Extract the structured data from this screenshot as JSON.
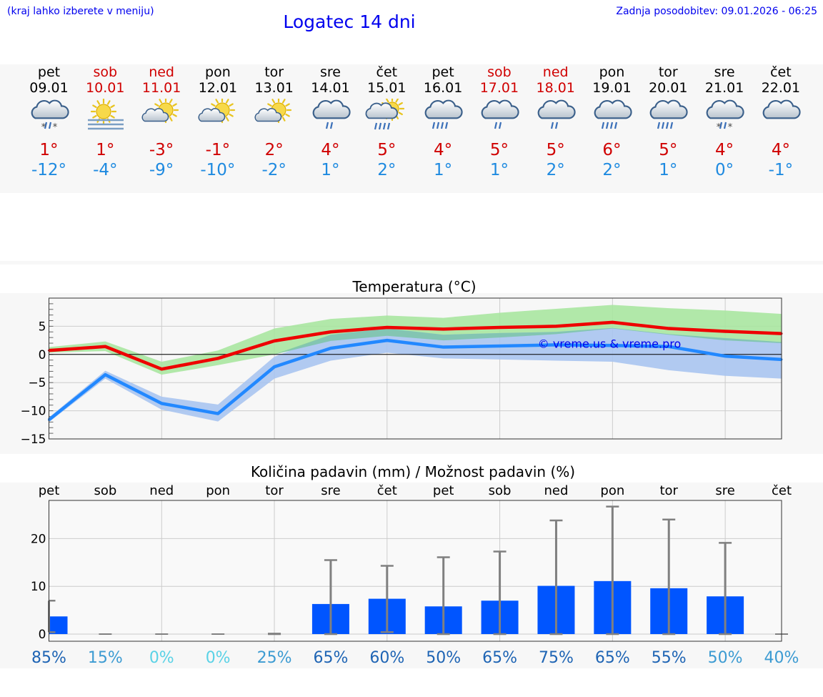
{
  "header": {
    "hint": "(kraj lahko izberete v meniju)",
    "title": "Logatec 14 dni",
    "updated": "Zadnja posodobitev: 09.01.2026 - 06:25"
  },
  "days": [
    {
      "name": "pet",
      "date": "09.01",
      "weekend": false,
      "icon": "cloud-snow-rain-icon",
      "tmax": "1°",
      "tmin": "-12°"
    },
    {
      "name": "sob",
      "date": "10.01",
      "weekend": true,
      "icon": "sun-fog-icon",
      "tmax": "1°",
      "tmin": "-4°"
    },
    {
      "name": "ned",
      "date": "11.01",
      "weekend": true,
      "icon": "partly-cloudy-icon",
      "tmax": "-3°",
      "tmin": "-9°"
    },
    {
      "name": "pon",
      "date": "12.01",
      "weekend": false,
      "icon": "partly-cloudy-icon",
      "tmax": "-1°",
      "tmin": "-10°"
    },
    {
      "name": "tor",
      "date": "13.01",
      "weekend": false,
      "icon": "partly-cloudy-icon",
      "tmax": "2°",
      "tmin": "-2°"
    },
    {
      "name": "sre",
      "date": "14.01",
      "weekend": false,
      "icon": "cloud-rain-icon",
      "tmax": "4°",
      "tmin": "1°"
    },
    {
      "name": "čet",
      "date": "15.01",
      "weekend": false,
      "icon": "sun-cloud-rain-icon",
      "tmax": "5°",
      "tmin": "2°"
    },
    {
      "name": "pet",
      "date": "16.01",
      "weekend": false,
      "icon": "cloud-heavy-rain-icon",
      "tmax": "4°",
      "tmin": "1°"
    },
    {
      "name": "sob",
      "date": "17.01",
      "weekend": true,
      "icon": "cloud-rain-icon",
      "tmax": "5°",
      "tmin": "1°"
    },
    {
      "name": "ned",
      "date": "18.01",
      "weekend": true,
      "icon": "cloud-rain-icon",
      "tmax": "5°",
      "tmin": "2°"
    },
    {
      "name": "pon",
      "date": "19.01",
      "weekend": false,
      "icon": "cloud-heavy-rain-icon",
      "tmax": "6°",
      "tmin": "2°"
    },
    {
      "name": "tor",
      "date": "20.01",
      "weekend": false,
      "icon": "cloud-heavy-rain-icon",
      "tmax": "5°",
      "tmin": "1°"
    },
    {
      "name": "sre",
      "date": "21.01",
      "weekend": false,
      "icon": "cloud-snow-rain-icon",
      "tmax": "4°",
      "tmin": "0°"
    },
    {
      "name": "čet",
      "date": "22.01",
      "weekend": false,
      "icon": "cloudy-icon",
      "tmax": "4°",
      "tmin": "-1°"
    }
  ],
  "colors": {
    "weekend": "#d00000",
    "tmin": "#1e8ae0",
    "maxLine": "#ee0000",
    "minLine": "#2288ff",
    "maxBand": "#a8e6a0",
    "minBand": "#a8c4f0",
    "overlap": "#7cc4a8",
    "bar": "#0055ff",
    "whisker": "#808080",
    "title": "#0000ee"
  },
  "chart_data": [
    {
      "type": "line",
      "title": "Temperatura (°C)",
      "ylim": [
        -15,
        10
      ],
      "yticks": [
        "5",
        "0",
        "−5",
        "−10",
        "−15"
      ],
      "yticks_values": [
        5,
        0,
        -5,
        -10,
        -15
      ],
      "x": [
        0,
        1,
        2,
        3,
        4,
        5,
        6,
        7,
        8,
        9,
        10,
        11,
        12,
        13
      ],
      "watermark": "© vreme.us & vreme.pro",
      "series": [
        {
          "name": "max",
          "values": [
            0.7,
            1.4,
            -2.6,
            -0.7,
            2.4,
            4.0,
            4.8,
            4.5,
            4.8,
            5.0,
            5.7,
            4.6,
            4.1,
            3.7
          ],
          "lower": [
            0.3,
            0.6,
            -3.6,
            -1.9,
            0.0,
            2.4,
            3.3,
            2.5,
            3.0,
            3.6,
            4.6,
            3.5,
            2.5,
            2.0
          ],
          "upper": [
            1.3,
            2.3,
            -1.3,
            0.7,
            4.6,
            6.3,
            6.9,
            6.5,
            7.4,
            8.1,
            8.8,
            8.2,
            7.8,
            7.2
          ]
        },
        {
          "name": "min",
          "values": [
            -11.6,
            -3.6,
            -8.7,
            -10.5,
            -2.2,
            1.1,
            2.5,
            1.3,
            1.5,
            1.7,
            1.6,
            1.4,
            -0.3,
            -0.9
          ],
          "lower": [
            -12.0,
            -4.3,
            -9.8,
            -11.9,
            -4.3,
            -1.1,
            0.3,
            -0.7,
            -0.9,
            -1.1,
            -1.3,
            -2.8,
            -3.8,
            -4.3
          ],
          "upper": [
            -11.2,
            -2.9,
            -7.5,
            -8.9,
            -0.4,
            3.5,
            4.6,
            3.5,
            3.8,
            4.0,
            4.7,
            3.6,
            2.9,
            2.2
          ]
        }
      ]
    },
    {
      "type": "bar",
      "title": "Količina padavin (mm) / Možnost padavin (%)",
      "ylim": [
        -1.5,
        28
      ],
      "yticks": [
        "20",
        "10",
        "0"
      ],
      "yticks_values": [
        20,
        10,
        0
      ],
      "categories": [
        "pet",
        "sob",
        "ned",
        "pon",
        "tor",
        "sre",
        "čet",
        "pet",
        "sob",
        "ned",
        "pon",
        "tor",
        "sre",
        "čet"
      ],
      "values": [
        3.7,
        0,
        0,
        0,
        0,
        6.3,
        7.4,
        5.8,
        7.0,
        10.1,
        11.1,
        9.6,
        7.9,
        0
      ],
      "whisker_low": [
        0.4,
        0,
        0,
        0,
        0,
        0,
        0.4,
        0,
        0,
        0,
        0,
        0,
        0,
        0
      ],
      "whisker_high": [
        7.0,
        0,
        0,
        0,
        0.1,
        15.5,
        14.3,
        16.1,
        17.3,
        23.8,
        26.7,
        24.0,
        19.1,
        0
      ],
      "probability": [
        "85%",
        "15%",
        "0%",
        "0%",
        "25%",
        "65%",
        "60%",
        "50%",
        "65%",
        "75%",
        "65%",
        "55%",
        "50%",
        "40%"
      ],
      "probability_colors": [
        "#1e64b4",
        "#3c9bd2",
        "#5ad2e6",
        "#5ad2e6",
        "#3c9bd2",
        "#1e64b4",
        "#1e64b4",
        "#1e64b4",
        "#1e64b4",
        "#1e64b4",
        "#1e64b4",
        "#1e64b4",
        "#3c9bd2",
        "#3c9bd2"
      ]
    }
  ]
}
